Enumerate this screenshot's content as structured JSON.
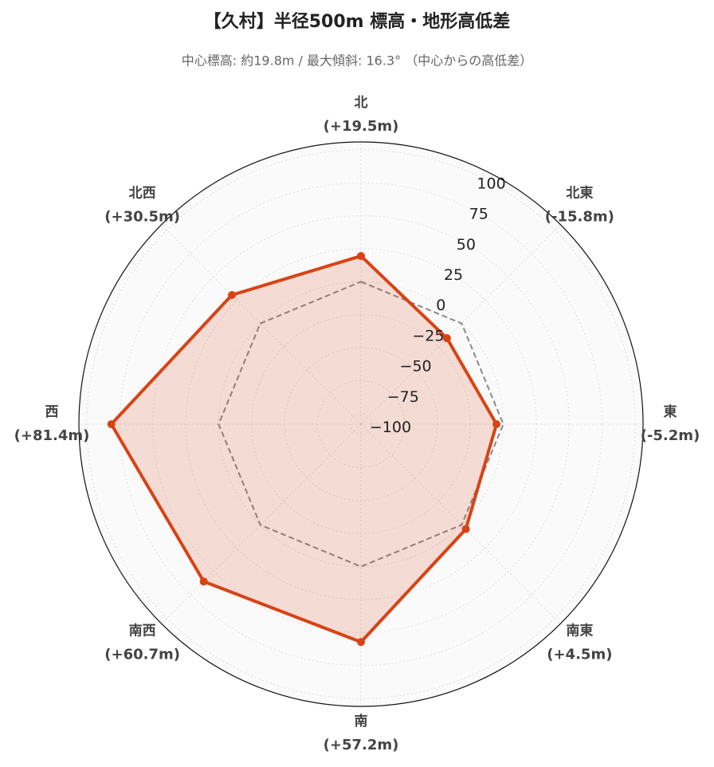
{
  "chart_data": {
    "type": "radar",
    "title": "【久村】半径500m 標高・地形高低差",
    "subtitle": "中心標高: 約19.8m / 最大傾斜: 16.3° （中心からの高低差）",
    "categories": [
      "北",
      "北東",
      "東",
      "南東",
      "南",
      "南西",
      "西",
      "北西"
    ],
    "values": [
      19.5,
      -15.8,
      -5.2,
      4.5,
      57.2,
      60.7,
      81.4,
      30.5
    ],
    "value_labels": [
      "(+19.5m)",
      "(-15.8m)",
      "(-5.2m)",
      "(+4.5m)",
      "(+57.2m)",
      "(+60.7m)",
      "(+81.4m)",
      "(+30.5m)"
    ],
    "color": "#d84315",
    "reference_line": 0,
    "rlim": [
      -108,
      106
    ],
    "rticks": [
      {
        "value": -100,
        "label": "−100"
      },
      {
        "value": -75,
        "label": "−75"
      },
      {
        "value": -50,
        "label": "−50"
      },
      {
        "value": -25,
        "label": "−25"
      },
      0,
      25,
      50,
      75,
      100
    ],
    "grid": true
  }
}
